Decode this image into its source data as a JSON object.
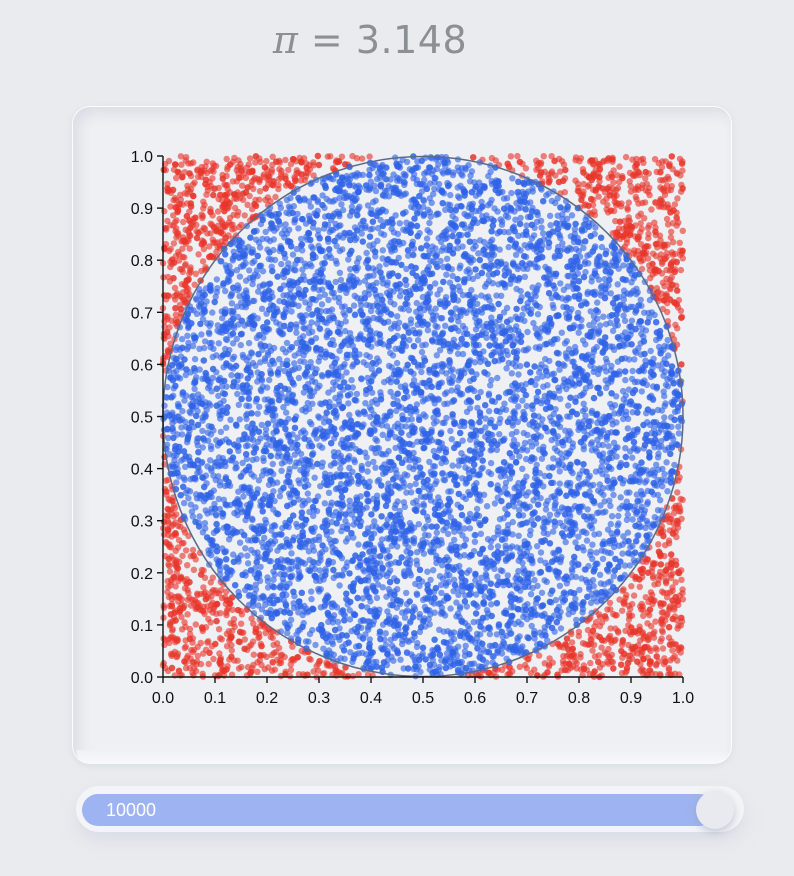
{
  "header": {
    "pi_symbol": "π",
    "pi_equals": " = ",
    "pi_value": "3.148"
  },
  "slider": {
    "value_label": "10000",
    "value": 10000,
    "fraction": 1.0,
    "track_color": "#9eb3f1"
  },
  "chart_data": {
    "type": "scatter",
    "x_ticks": [
      "0.0",
      "0.1",
      "0.2",
      "0.3",
      "0.4",
      "0.5",
      "0.6",
      "0.7",
      "0.8",
      "0.9",
      "1.0"
    ],
    "y_ticks": [
      "0.0",
      "0.1",
      "0.2",
      "0.3",
      "0.4",
      "0.5",
      "0.6",
      "0.7",
      "0.8",
      "0.9",
      "1.0"
    ],
    "xlim": [
      0,
      1
    ],
    "ylim": [
      0,
      1
    ],
    "grid": false,
    "sample_count": 10000,
    "circle": {
      "cx": 0.5,
      "cy": 0.5,
      "r": 0.5,
      "stroke": "#5a6b8a"
    },
    "series": [
      {
        "role": "inside",
        "color": "#2e63e6",
        "count": 7870
      },
      {
        "role": "outside",
        "color": "#e8362a",
        "count": 2130
      }
    ]
  }
}
